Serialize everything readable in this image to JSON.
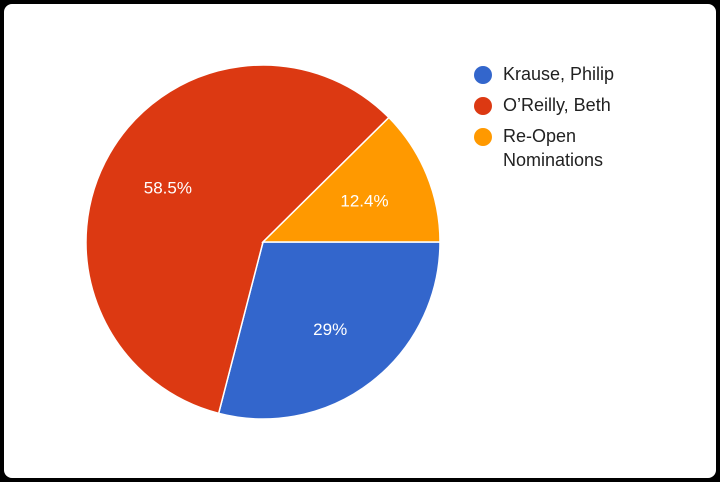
{
  "chart_data": {
    "type": "pie",
    "slices": [
      {
        "name": "Krause, Philip",
        "value": 29.0,
        "label": "29%",
        "color": "#3366cc"
      },
      {
        "name": "O'Reilly, Beth",
        "value": 58.5,
        "label": "58.5%",
        "color": "#dc3912"
      },
      {
        "name": "Re-Open Nominations",
        "value": 12.4,
        "label": "12.4%",
        "color": "#ff9900"
      }
    ],
    "start_angle_deg": 0,
    "direction": "clockwise-from-east",
    "legend": {
      "position": "right",
      "entries": [
        {
          "lines": [
            "Krause, Philip"
          ],
          "color": "#3366cc"
        },
        {
          "lines": [
            "O’Reilly, Beth"
          ],
          "color": "#dc3912"
        },
        {
          "lines": [
            "Re-Open",
            "Nominations"
          ],
          "color": "#ff9900"
        }
      ]
    }
  },
  "colors": {
    "background": "#ffffff",
    "outer_border": "#000000",
    "slice_separator": "#ffffff",
    "label_text": "#ffffff",
    "legend_text": "#212121"
  }
}
